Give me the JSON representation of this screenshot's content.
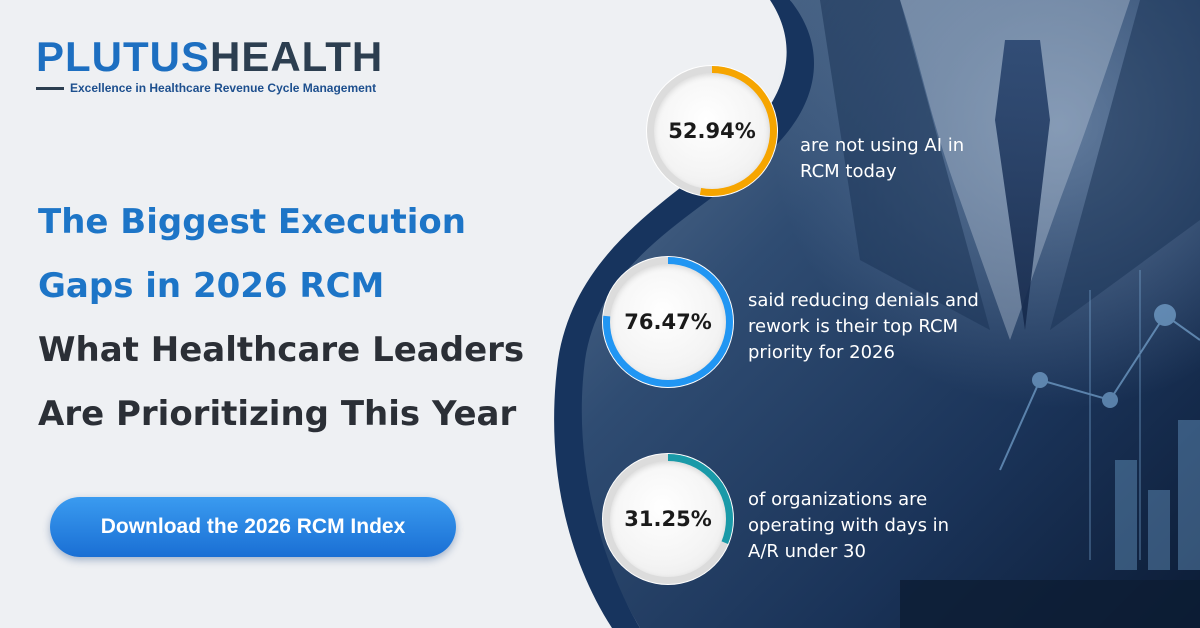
{
  "brand": {
    "name_part1": "PLUTUS",
    "name_part2": "HEALTH",
    "tagline": "Excellence in Healthcare Revenue Cycle Management"
  },
  "headline": {
    "line1": "The Biggest Execution",
    "line2": "Gaps in 2026 RCM",
    "line3": "What Healthcare Leaders",
    "line4": "Are Prioritizing This Year"
  },
  "cta": {
    "label": "Download the 2026 RCM Index"
  },
  "colors": {
    "brand_blue": "#1d6fc1",
    "ring_orange": "#f6a500",
    "ring_blue": "#2196f3",
    "ring_teal": "#1a9aa8",
    "ring_track": "#dcdcdc"
  },
  "stats": [
    {
      "value": "52.94%",
      "fraction": 0.5294,
      "color": "#f6a500",
      "text": "are not using AI in RCM today"
    },
    {
      "value": "76.47%",
      "fraction": 0.7647,
      "color": "#2196f3",
      "text": "said reducing denials and rework is their top RCM priority for 2026"
    },
    {
      "value": "31.25%",
      "fraction": 0.3125,
      "color": "#1a9aa8",
      "text": "of organizations are operating with days in A/R under 30"
    }
  ]
}
